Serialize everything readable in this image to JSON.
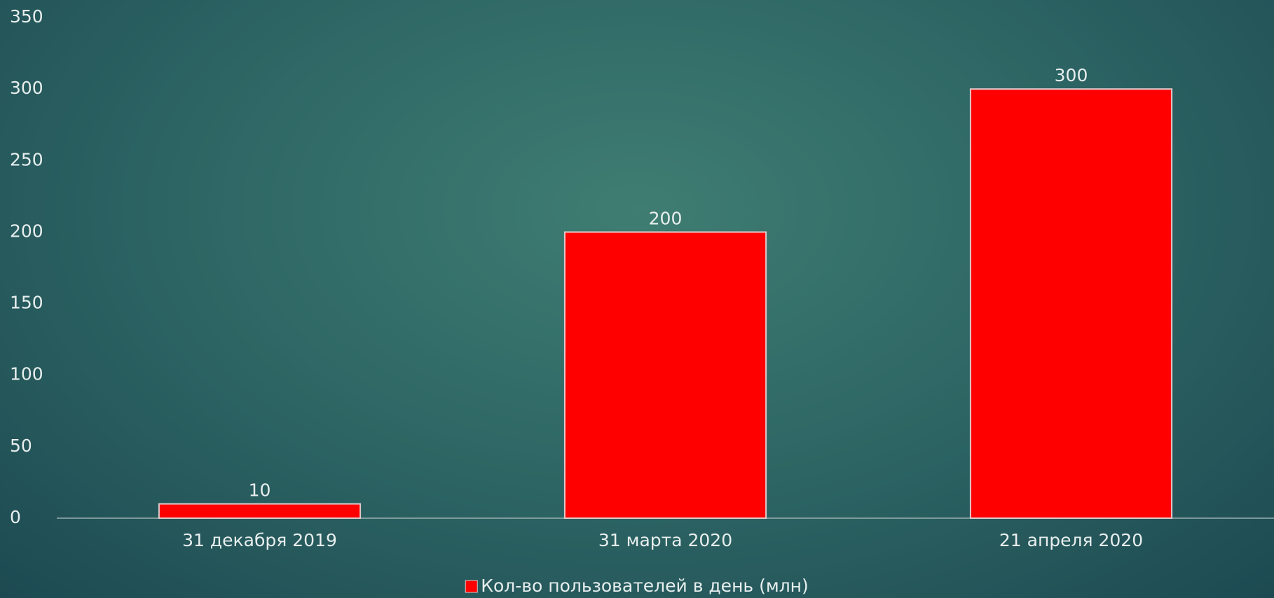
{
  "chart_data": {
    "type": "bar",
    "categories": [
      "31 декабря 2019",
      "31 марта 2020",
      "21 апреля 2020"
    ],
    "series": [
      {
        "name": "Кол-во пользователей в день (млн)",
        "color": "#ff0000",
        "values": [
          10,
          200,
          300
        ]
      }
    ],
    "ylim": [
      0,
      350
    ],
    "yticks": [
      0,
      50,
      100,
      150,
      200,
      250,
      300,
      350
    ],
    "grid": false,
    "legend": "bottom"
  }
}
